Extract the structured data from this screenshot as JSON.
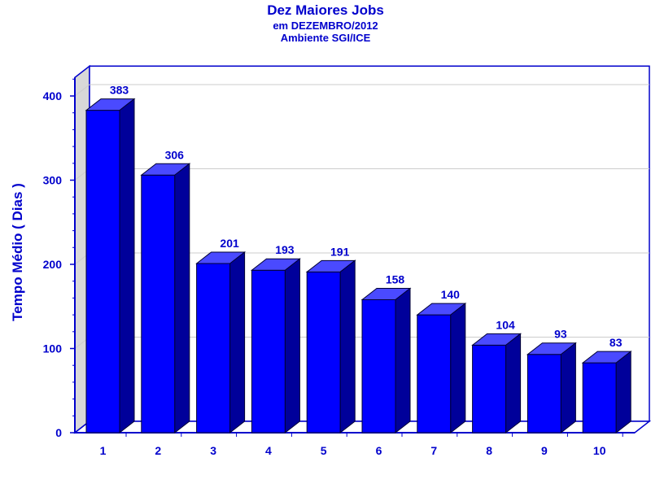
{
  "chart_data": {
    "type": "bar",
    "title": "Dez Maiores Jobs",
    "subtitle": "em DEZEMBRO/2012",
    "subtitle2": "Ambiente SGI/ICE",
    "xlabel": "",
    "ylabel": "Tempo Médio ( Dias )",
    "categories": [
      "1",
      "2",
      "3",
      "4",
      "5",
      "6",
      "7",
      "8",
      "9",
      "10"
    ],
    "values": [
      383,
      306,
      201,
      193,
      191,
      158,
      140,
      104,
      93,
      83
    ],
    "data_labels": [
      "383",
      "306",
      "201",
      "193",
      "191",
      "158",
      "140",
      "104",
      "93",
      "83"
    ],
    "yticks": [
      "0",
      "100",
      "200",
      "300",
      "400"
    ],
    "ylim": [
      0,
      420
    ],
    "grid": true,
    "style": "3d",
    "colors": {
      "bar_front": "#0000ff",
      "bar_top": "#4a4aff",
      "bar_side": "#00009a",
      "axis": "#0000cc",
      "text": "#0000cc",
      "grid": "#cccccc",
      "side_wall": "#d8d8d8"
    }
  }
}
